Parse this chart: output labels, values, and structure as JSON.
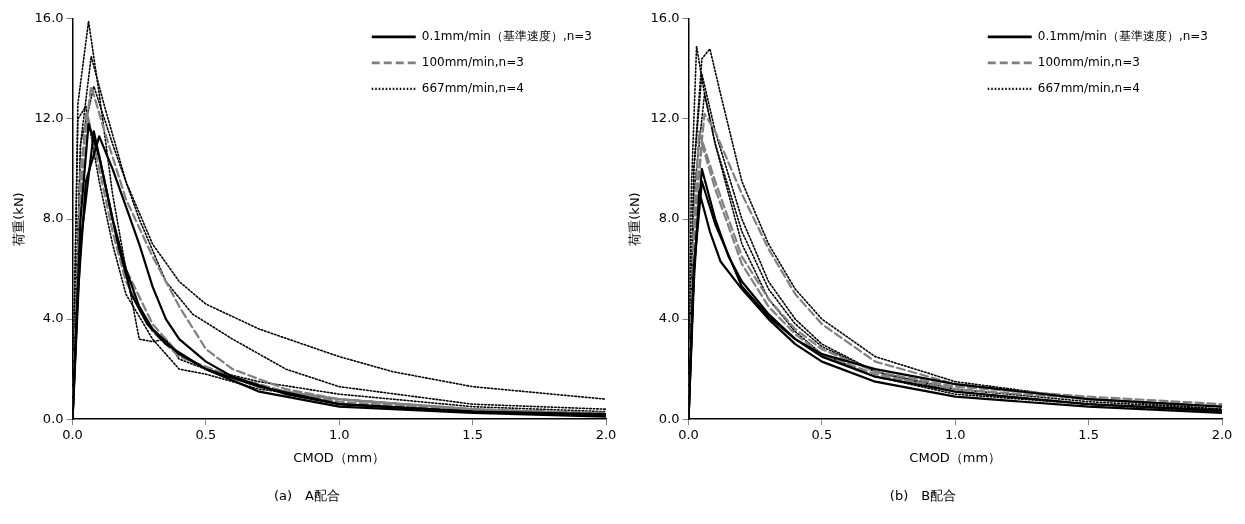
{
  "chart_data": [
    {
      "type": "line",
      "title": "(a)　A配合",
      "xlabel": "CMOD（mm）",
      "ylabel": "荷重(kN)",
      "xlim": [
        0,
        2
      ],
      "ylim": [
        0,
        16
      ],
      "xticks": [
        {
          "value": 0,
          "label": "0.0"
        },
        {
          "value": 0.5,
          "label": "0.5"
        },
        {
          "value": 1,
          "label": "1.0"
        },
        {
          "value": 1.5,
          "label": "1.5"
        },
        {
          "value": 2,
          "label": "2.0"
        }
      ],
      "yticks": [
        {
          "value": 0,
          "label": "0.0"
        },
        {
          "value": 4,
          "label": "4.0"
        },
        {
          "value": 8,
          "label": "8.0"
        },
        {
          "value": 12,
          "label": "12.0"
        },
        {
          "value": 16,
          "label": "16.0"
        }
      ],
      "grid": false,
      "legend": "top right",
      "marker": "none",
      "series": [
        {
          "name": "0.1mm/min（基準速度）,n=3",
          "color": "#000000",
          "line_style": "solid",
          "x": [
            0,
            0.02,
            0.05,
            0.1,
            0.15,
            0.2,
            0.25,
            0.3,
            0.35,
            0.4,
            0.5,
            0.6,
            0.8,
            1.0,
            1.5,
            2.0
          ],
          "values": [
            0,
            5,
            9.5,
            11.3,
            10,
            8.5,
            7,
            5.3,
            4.0,
            3.2,
            2.3,
            1.7,
            1.0,
            0.6,
            0.3,
            0.2
          ]
        },
        {
          "color": "#000000",
          "line_style": "solid",
          "x": [
            0,
            0.03,
            0.06,
            0.1,
            0.15,
            0.2,
            0.25,
            0.3,
            0.4,
            0.5,
            0.7,
            1.0,
            1.5,
            2.0
          ],
          "values": [
            0,
            8,
            11.8,
            10.5,
            8,
            6,
            4.5,
            3.6,
            2.6,
            2.0,
            1.3,
            0.6,
            0.3,
            0.15
          ]
        },
        {
          "color": "#000000",
          "line_style": "solid",
          "x": [
            0,
            0.03,
            0.08,
            0.12,
            0.17,
            0.22,
            0.28,
            0.35,
            0.5,
            0.7,
            1.0,
            1.5,
            2.0
          ],
          "values": [
            0,
            7,
            11.5,
            9.5,
            7,
            5,
            3.8,
            3.0,
            2.0,
            1.1,
            0.5,
            0.25,
            0.1
          ]
        },
        {
          "name": "100mm/min,n=3",
          "color": "#808080",
          "line_style": "dashed",
          "x": [
            0,
            0.03,
            0.07,
            0.12,
            0.2,
            0.3,
            0.4,
            0.5,
            0.6,
            0.8,
            1.0,
            1.5,
            2.0
          ],
          "values": [
            0,
            10,
            13.3,
            11.5,
            8.8,
            6.5,
            4.5,
            2.8,
            2.0,
            1.2,
            0.8,
            0.4,
            0.2
          ]
        },
        {
          "color": "#808080",
          "line_style": "dashed",
          "x": [
            0,
            0.03,
            0.05,
            0.1,
            0.15,
            0.2,
            0.3,
            0.4,
            0.5,
            0.7,
            1.0,
            1.5,
            2.0
          ],
          "values": [
            0,
            9,
            12.2,
            10.5,
            8,
            6,
            3.8,
            2.6,
            2.0,
            1.3,
            0.7,
            0.35,
            0.2
          ]
        },
        {
          "color": "#808080",
          "line_style": "dashed",
          "x": [
            0,
            0.03,
            0.06,
            0.1,
            0.15,
            0.2,
            0.3,
            0.4,
            0.6,
            0.8,
            1.0,
            1.5,
            2.0
          ],
          "values": [
            0,
            8.5,
            12.0,
            10,
            7.5,
            5.5,
            3.5,
            2.5,
            1.7,
            1.1,
            0.8,
            0.4,
            0.25
          ]
        },
        {
          "name": "667mm/min,n=4",
          "color": "#000000",
          "line_style": "dotted",
          "x": [
            0,
            0.02,
            0.06,
            0.1,
            0.15,
            0.2,
            0.25,
            0.3,
            0.35,
            0.4,
            0.5,
            0.7,
            1.0,
            1.5,
            2.0
          ],
          "values": [
            0,
            12.6,
            15.9,
            13,
            9,
            6,
            3.2,
            3.1,
            3.2,
            2.4,
            2.0,
            1.5,
            1.0,
            0.5,
            0.3
          ]
        },
        {
          "color": "#000000",
          "line_style": "dotted",
          "x": [
            0,
            0.03,
            0.07,
            0.12,
            0.2,
            0.3,
            0.4,
            0.5,
            0.7,
            1.0,
            1.2,
            1.5,
            1.8,
            2.0
          ],
          "values": [
            0,
            11,
            14.5,
            12.5,
            9.5,
            7.0,
            5.5,
            4.6,
            3.6,
            2.5,
            1.9,
            1.3,
            1.0,
            0.8
          ]
        },
        {
          "color": "#000000",
          "line_style": "dotted",
          "x": [
            0,
            0.03,
            0.08,
            0.15,
            0.25,
            0.35,
            0.45,
            0.6,
            0.8,
            1.0,
            1.5,
            2.0
          ],
          "values": [
            0,
            11,
            13.3,
            11,
            8,
            5.5,
            4.2,
            3.2,
            2.0,
            1.3,
            0.6,
            0.4
          ]
        },
        {
          "color": "#000000",
          "line_style": "dotted",
          "x": [
            0,
            0.02,
            0.05,
            0.1,
            0.15,
            0.2,
            0.3,
            0.4,
            0.5,
            0.7,
            1.0,
            1.5,
            2.0
          ],
          "values": [
            0,
            12,
            12.5,
            9.5,
            7,
            5,
            3.2,
            2.0,
            1.8,
            1.2,
            0.8,
            0.4,
            0.2
          ]
        }
      ]
    },
    {
      "type": "line",
      "title": "(b)　B配合",
      "xlabel": "CMOD（mm）",
      "ylabel": "荷重(kN)",
      "xlim": [
        0,
        2
      ],
      "ylim": [
        0,
        16
      ],
      "xticks": [
        {
          "value": 0,
          "label": "0.0"
        },
        {
          "value": 0.5,
          "label": "0.5"
        },
        {
          "value": 1,
          "label": "1.0"
        },
        {
          "value": 1.5,
          "label": "1.5"
        },
        {
          "value": 2,
          "label": "2.0"
        }
      ],
      "yticks": [
        {
          "value": 0,
          "label": "0.0"
        },
        {
          "value": 4,
          "label": "4.0"
        },
        {
          "value": 8,
          "label": "8.0"
        },
        {
          "value": 12,
          "label": "12.0"
        },
        {
          "value": 16,
          "label": "16.0"
        }
      ],
      "grid": false,
      "legend": "top right",
      "marker": "none",
      "series": [
        {
          "name": "0.1mm/min（基準速度）,n=3",
          "color": "#000000",
          "line_style": "solid",
          "x": [
            0,
            0.02,
            0.05,
            0.1,
            0.15,
            0.2,
            0.3,
            0.4,
            0.5,
            0.7,
            1.0,
            1.5,
            2.0
          ],
          "values": [
            0,
            6,
            10,
            8,
            6.5,
            5.5,
            4.2,
            3.2,
            2.5,
            1.7,
            1.1,
            0.6,
            0.35
          ]
        },
        {
          "color": "#000000",
          "line_style": "solid",
          "x": [
            0,
            0.02,
            0.04,
            0.08,
            0.12,
            0.2,
            0.3,
            0.4,
            0.5,
            0.7,
            1.0,
            1.5,
            2.0
          ],
          "values": [
            0,
            5.5,
            9.1,
            7.5,
            6.3,
            5.2,
            4.0,
            3.0,
            2.3,
            1.5,
            0.9,
            0.5,
            0.25
          ]
        },
        {
          "color": "#000000",
          "line_style": "solid",
          "x": [
            0,
            0.02,
            0.05,
            0.1,
            0.2,
            0.3,
            0.4,
            0.5,
            0.7,
            1.0,
            1.5,
            2.0
          ],
          "values": [
            0,
            6,
            9.5,
            7.8,
            5.3,
            4.1,
            3.2,
            2.6,
            2.0,
            1.4,
            0.8,
            0.5
          ]
        },
        {
          "name": "100mm/min,n=3",
          "color": "#808080",
          "line_style": "dashed",
          "x": [
            0,
            0.03,
            0.06,
            0.1,
            0.2,
            0.3,
            0.4,
            0.5,
            0.7,
            1.0,
            1.5,
            2.0
          ],
          "values": [
            0,
            9,
            12.2,
            11.5,
            9,
            6.8,
            5,
            3.8,
            2.3,
            1.4,
            0.8,
            0.5
          ]
        },
        {
          "color": "#808080",
          "line_style": "dashed",
          "x": [
            0,
            0.02,
            0.04,
            0.1,
            0.2,
            0.3,
            0.4,
            0.5,
            0.7,
            1.0,
            1.5,
            2.0
          ],
          "values": [
            0,
            8,
            11.5,
            9.5,
            6.5,
            4.8,
            3.6,
            2.8,
            1.9,
            1.3,
            0.9,
            0.6
          ]
        },
        {
          "color": "#808080",
          "line_style": "dashed",
          "x": [
            0,
            0.02,
            0.05,
            0.1,
            0.2,
            0.3,
            0.4,
            0.5,
            0.7,
            1.0,
            1.5,
            2.0
          ],
          "values": [
            0,
            7.5,
            11,
            9.2,
            6.2,
            4.5,
            3.4,
            2.6,
            1.8,
            1.2,
            0.8,
            0.5
          ]
        },
        {
          "name": "667mm/min,n=4",
          "color": "#000000",
          "line_style": "dotted",
          "x": [
            0,
            0.01,
            0.03,
            0.06,
            0.1,
            0.2,
            0.3,
            0.4,
            0.5,
            0.7,
            1.0,
            1.5,
            2.0
          ],
          "values": [
            0,
            9,
            14.9,
            13,
            11,
            7,
            4.8,
            3.5,
            2.6,
            1.7,
            1.0,
            0.6,
            0.3
          ]
        },
        {
          "color": "#000000",
          "line_style": "dotted",
          "x": [
            0,
            0.02,
            0.05,
            0.08,
            0.12,
            0.2,
            0.3,
            0.4,
            0.5,
            0.7,
            1.0,
            1.5,
            2.0
          ],
          "values": [
            0,
            10,
            14.4,
            14.8,
            13,
            9.5,
            7,
            5.2,
            4.0,
            2.5,
            1.5,
            0.8,
            0.4
          ]
        },
        {
          "color": "#000000",
          "line_style": "dotted",
          "x": [
            0,
            0.02,
            0.05,
            0.1,
            0.2,
            0.3,
            0.4,
            0.5,
            0.7,
            1.0,
            1.5,
            2.0
          ],
          "values": [
            0,
            10,
            13.8,
            11.5,
            8,
            5.5,
            4.0,
            3.0,
            1.9,
            1.2,
            0.7,
            0.4
          ]
        },
        {
          "color": "#000000",
          "line_style": "dotted",
          "x": [
            0,
            0.02,
            0.06,
            0.1,
            0.2,
            0.3,
            0.4,
            0.5,
            0.7,
            1.0,
            1.5,
            2.0
          ],
          "values": [
            0,
            9,
            13,
            11,
            7.5,
            5.2,
            3.8,
            2.9,
            1.9,
            1.1,
            0.6,
            0.3
          ]
        }
      ]
    }
  ]
}
